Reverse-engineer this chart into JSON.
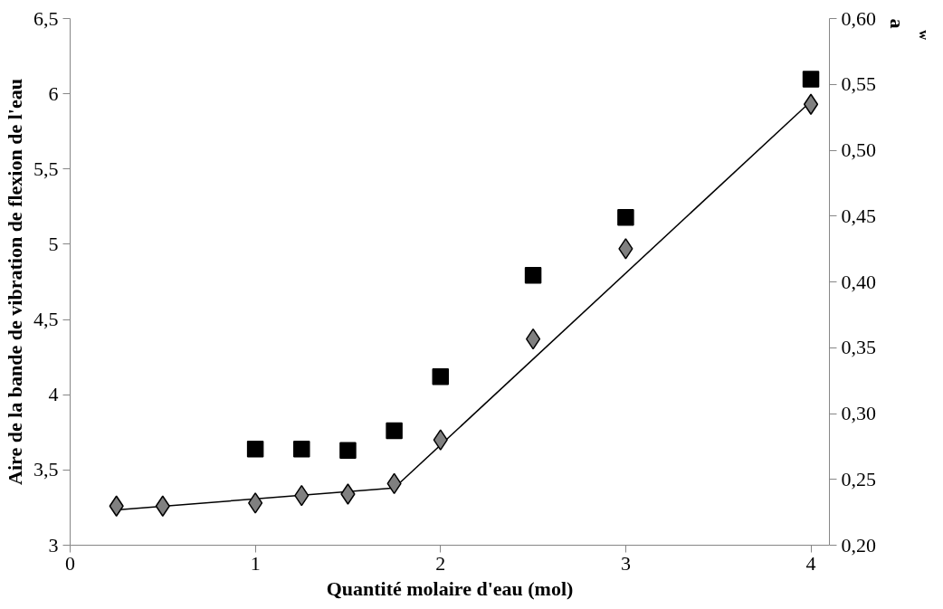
{
  "chart_data": {
    "type": "scatter",
    "xlabel": "Quantité molaire d'eau (mol)",
    "ylabel": "Aire de la bande de vibration de flexion de l'eau",
    "y2label": "a$_{w}$",
    "xlim": [
      0,
      4.1
    ],
    "xticks": [
      0,
      1,
      2,
      3,
      4
    ],
    "ylim": [
      3,
      6.5
    ],
    "yticks": [
      {
        "value": 3,
        "label": "3"
      },
      {
        "value": 3.5,
        "label": "3,5"
      },
      {
        "value": 4,
        "label": "4"
      },
      {
        "value": 4.5,
        "label": "4,5"
      },
      {
        "value": 5,
        "label": "5"
      },
      {
        "value": 5.5,
        "label": "5,5"
      },
      {
        "value": 6,
        "label": "6"
      },
      {
        "value": 6.5,
        "label": "6,5"
      }
    ],
    "y2lim": [
      0.2,
      0.6
    ],
    "y2ticks": [
      {
        "value": 0.2,
        "label": "0,20"
      },
      {
        "value": 0.25,
        "label": "0,25"
      },
      {
        "value": 0.3,
        "label": "0,30"
      },
      {
        "value": 0.35,
        "label": "0,35"
      },
      {
        "value": 0.4,
        "label": "0,40"
      },
      {
        "value": 0.45,
        "label": "0,45"
      },
      {
        "value": 0.5,
        "label": "0,50"
      },
      {
        "value": 0.55,
        "label": "0,55"
      },
      {
        "value": 0.6,
        "label": "0,60"
      }
    ],
    "grid": false,
    "series": [
      {
        "type": "line",
        "color": "#000000",
        "marker": "none",
        "x": [
          0.25,
          1.75
        ],
        "values": [
          3.235,
          3.38
        ]
      },
      {
        "type": "line",
        "color": "#000000",
        "marker": "none",
        "x": [
          1.75,
          4
        ],
        "values": [
          3.38,
          5.95
        ]
      },
      {
        "color": "#808080",
        "marker": "diamond",
        "x": [
          0.25,
          0.5,
          1,
          1.25,
          1.5,
          1.75,
          2,
          2.5,
          3,
          4
        ],
        "values": [
          3.26,
          3.26,
          3.28,
          3.33,
          3.34,
          3.41,
          3.7,
          4.37,
          4.97,
          5.93
        ]
      },
      {
        "color": "#000000",
        "marker": "square",
        "axis": "y2",
        "x": [
          1,
          1.25,
          1.5,
          1.75,
          2,
          2.5,
          3,
          4
        ],
        "values": [
          0.273,
          0.273,
          0.272,
          0.287,
          0.328,
          0.405,
          0.449,
          0.554
        ]
      }
    ]
  }
}
